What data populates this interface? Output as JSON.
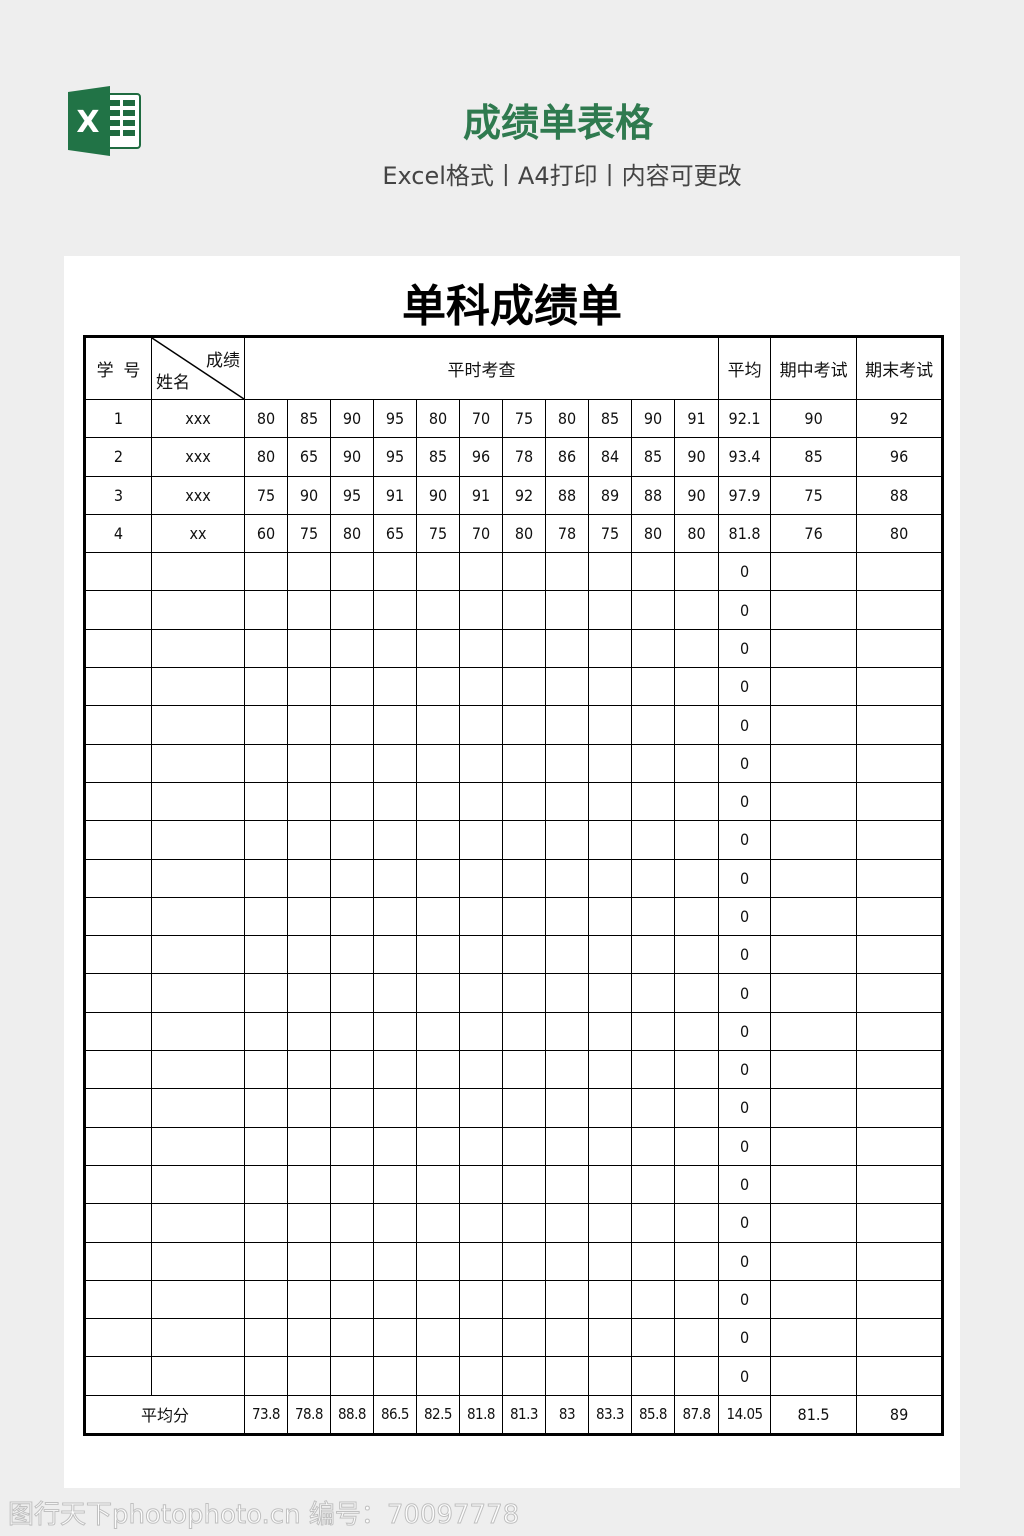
{
  "header": {
    "title": "成绩单表格",
    "subtitle": "Excel格式丨A4打印丨内容可更改",
    "logo": "excel-logo",
    "brand_color": "#2f7a4f"
  },
  "sheet": {
    "title": "单科成绩单",
    "headers": {
      "id": "学  号",
      "score": "成绩",
      "name": "姓名",
      "regular": "平时考查",
      "avg": "平均",
      "midterm": "期中考试",
      "final": "期末考试"
    },
    "rows": [
      {
        "id": "1",
        "name": "xxx",
        "scores": [
          "80",
          "85",
          "90",
          "95",
          "80",
          "70",
          "75",
          "80",
          "85",
          "90",
          "91"
        ],
        "avg": "92.1",
        "midterm": "90",
        "final": "92"
      },
      {
        "id": "2",
        "name": "xxx",
        "scores": [
          "80",
          "65",
          "90",
          "95",
          "85",
          "96",
          "78",
          "86",
          "84",
          "85",
          "90"
        ],
        "avg": "93.4",
        "midterm": "85",
        "final": "96"
      },
      {
        "id": "3",
        "name": "xxx",
        "scores": [
          "75",
          "90",
          "95",
          "91",
          "90",
          "91",
          "92",
          "88",
          "89",
          "88",
          "90"
        ],
        "avg": "97.9",
        "midterm": "75",
        "final": "88"
      },
      {
        "id": "4",
        "name": "xx",
        "scores": [
          "60",
          "75",
          "80",
          "65",
          "75",
          "70",
          "80",
          "78",
          "75",
          "80",
          "80"
        ],
        "avg": "81.8",
        "midterm": "76",
        "final": "80"
      }
    ],
    "empty_row_avg": "0",
    "empty_row_count": 22,
    "footer": {
      "label": "平均分",
      "scores": [
        "73.8",
        "78.8",
        "88.8",
        "86.5",
        "82.5",
        "81.8",
        "81.3",
        "83",
        "83.3",
        "85.8",
        "87.8"
      ],
      "avg": "14.05",
      "midterm": "81.5",
      "final": "89"
    }
  },
  "watermark": "图行天下photophoto.cn 编号：70097778"
}
